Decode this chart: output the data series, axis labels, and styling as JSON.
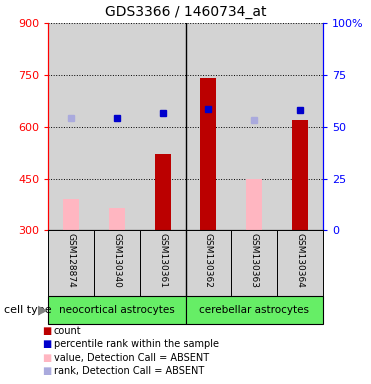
{
  "title": "GDS3366 / 1460734_at",
  "samples": [
    "GSM128874",
    "GSM130340",
    "GSM130361",
    "GSM130362",
    "GSM130363",
    "GSM130364"
  ],
  "cell_type_labels": [
    "neocortical astrocytes",
    "cerebellar astrocytes"
  ],
  "cell_type_color": "#66ee66",
  "ylim_left": [
    300,
    900
  ],
  "ylim_right": [
    0,
    100
  ],
  "yticks_left": [
    300,
    450,
    600,
    750,
    900
  ],
  "yticks_right": [
    0,
    25,
    50,
    75,
    100
  ],
  "bar_values": [
    null,
    null,
    520,
    740,
    null,
    620
  ],
  "bar_absent_values": [
    390,
    365,
    null,
    null,
    450,
    null
  ],
  "percentile_present": [
    null,
    625,
    640,
    650,
    null,
    648
  ],
  "percentile_absent": [
    625,
    null,
    null,
    null,
    620,
    null
  ],
  "bar_color_present": "#bb0000",
  "bar_color_absent": "#ffb6c1",
  "dot_color_present": "#0000cc",
  "dot_color_absent": "#aaaadd",
  "baseline": 300,
  "bar_width": 0.35,
  "sample_area_color": "#d3d3d3",
  "legend_items": [
    {
      "label": "count",
      "color": "#bb0000"
    },
    {
      "label": "percentile rank within the sample",
      "color": "#0000cc"
    },
    {
      "label": "value, Detection Call = ABSENT",
      "color": "#ffb6c1"
    },
    {
      "label": "rank, Detection Call = ABSENT",
      "color": "#aaaadd"
    }
  ]
}
